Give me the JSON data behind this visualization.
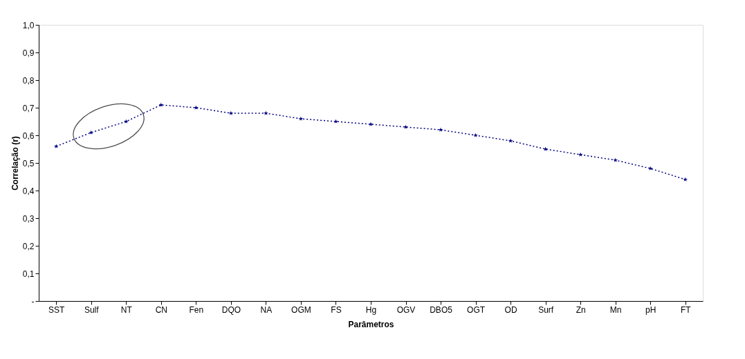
{
  "chart_data": {
    "type": "line",
    "xlabel": "Parâmetros",
    "ylabel": "Correlação (r)",
    "categories": [
      "SST",
      "Sulf",
      "NT",
      "CN",
      "Fen",
      "DQO",
      "NA",
      "OGM",
      "FS",
      "Hg",
      "OGV",
      "DBO5",
      "OGT",
      "OD",
      "Surf",
      "Zn",
      "Mn",
      "pH",
      "FT"
    ],
    "series": [
      {
        "color": "#000080",
        "values": [
          0.56,
          0.61,
          0.65,
          0.71,
          0.7,
          0.68,
          0.68,
          0.66,
          0.65,
          0.64,
          0.63,
          0.62,
          0.6,
          0.58,
          0.55,
          0.53,
          0.51,
          0.48,
          0.44
        ]
      }
    ],
    "ylim": [
      0,
      1
    ],
    "yticks": [
      {
        "value": 0,
        "label": "-"
      },
      {
        "value": 0.1,
        "label": "0,1"
      },
      {
        "value": 0.2,
        "label": "0,2"
      },
      {
        "value": 0.3,
        "label": "0,3"
      },
      {
        "value": 0.4,
        "label": "0,4"
      },
      {
        "value": 0.5,
        "label": "0,5"
      },
      {
        "value": 0.6,
        "label": "0,6"
      },
      {
        "value": 0.7,
        "label": "0,7"
      },
      {
        "value": 0.8,
        "label": "0,8"
      },
      {
        "value": 0.9,
        "label": "0,9"
      },
      {
        "value": 1.0,
        "label": "1,0"
      }
    ],
    "grid": false,
    "marker": "star",
    "line_style": "dotted"
  }
}
